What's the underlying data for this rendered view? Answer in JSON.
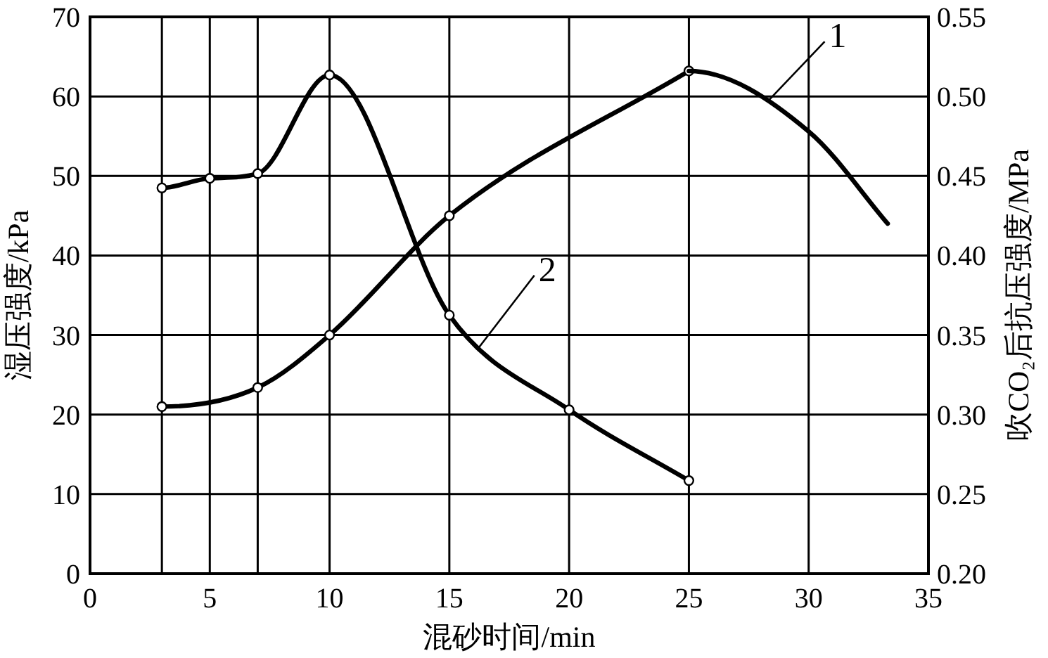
{
  "chart_data": {
    "type": "line",
    "xlabel": "混砂时间/min",
    "ylabel": "湿压强度/kPa",
    "y2label": "吹CO₂后抗压强度/MPa",
    "xlim": [
      0,
      35
    ],
    "xticks": [
      0,
      {
        "value": 3,
        "label": null
      },
      5,
      {
        "value": 7,
        "label": null
      },
      10,
      15,
      20,
      25,
      30,
      35
    ],
    "ylim": [
      0,
      70
    ],
    "yticks": [
      0,
      10,
      20,
      30,
      40,
      50,
      60,
      70
    ],
    "y2lim": [
      0.2,
      0.55
    ],
    "y2ticks": [
      {
        "value": 0.2,
        "label": "0.20"
      },
      {
        "value": 0.25,
        "label": "0.25"
      },
      {
        "value": 0.3,
        "label": "0.30"
      },
      {
        "value": 0.35,
        "label": "0.35"
      },
      {
        "value": 0.4,
        "label": "0.40"
      },
      {
        "value": 0.45,
        "label": "0.45"
      },
      {
        "value": 0.5,
        "label": "0.50"
      },
      {
        "value": 0.55,
        "label": "0.55"
      }
    ],
    "grid": true,
    "line_style": "solid",
    "series": [
      {
        "name": "2",
        "color": "#000000",
        "marker": "circle",
        "x": [
          3,
          5,
          7,
          10,
          15,
          20,
          25
        ],
        "values": [
          48.5,
          49.7,
          50.3,
          62.7,
          32.5,
          20.6,
          11.7
        ]
      },
      {
        "color": "#000000",
        "marker": "circle",
        "axis": "y2",
        "x": [
          3,
          7,
          10,
          15,
          25
        ],
        "values": [
          0.305,
          0.317,
          0.35,
          0.425,
          0.516
        ]
      },
      {
        "name": "1",
        "color": "#000000",
        "marker": "none",
        "axis": "y2",
        "x": [
          25,
          30,
          33.3
        ],
        "values": [
          0.516,
          0.478,
          0.42
        ]
      }
    ]
  }
}
